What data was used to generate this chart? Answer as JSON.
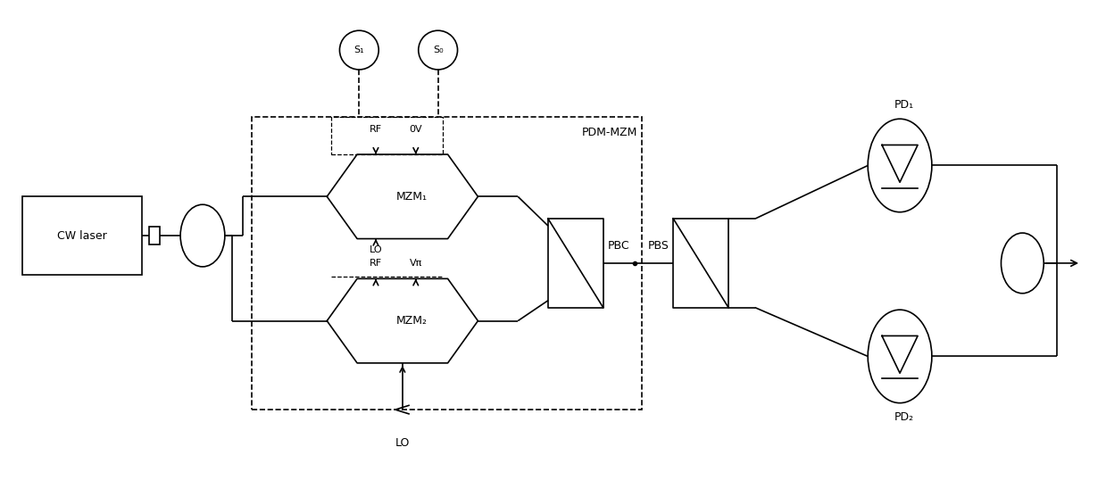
{
  "bg_color": "#ffffff",
  "line_color": "#000000",
  "fig_width": 12.39,
  "fig_height": 5.57,
  "labels": {
    "cw_laser": "CW laser",
    "mzm1": "MZM₁",
    "mzm2": "MZM₂",
    "pbc": "PBC",
    "pbs": "PBS",
    "pd1": "PD₁",
    "pd2": "PD₂",
    "s1": "S₁",
    "s0": "S₀",
    "rf_top": "RF",
    "ov_top": "0V",
    "lo_mid": "LO",
    "rf_mid": "RF",
    "v_pi": "Vπ",
    "lo_bot": "LO",
    "pdm_mzm": "PDM-MZM"
  }
}
